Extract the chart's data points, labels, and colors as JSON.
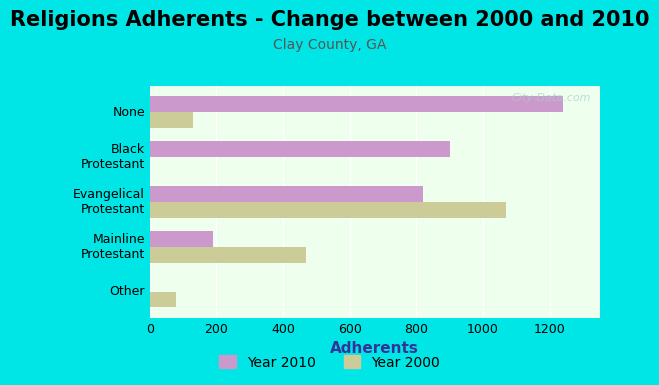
{
  "title": "Religions Adherents - Change between 2000 and 2010",
  "subtitle": "Clay County, GA",
  "xlabel": "Adherents",
  "categories": [
    "Other",
    "Mainline\nProtestant",
    "Evangelical\nProtestant",
    "Black\nProtestant",
    "None"
  ],
  "values_2010": [
    0,
    190,
    820,
    900,
    1240
  ],
  "values_2000": [
    80,
    470,
    1070,
    0,
    130
  ],
  "color_2010": "#cc99cc",
  "color_2000": "#cccc99",
  "background_outer": "#00e5e5",
  "background_plot": "#eeffee",
  "xlim": [
    0,
    1350
  ],
  "xticks": [
    0,
    200,
    400,
    600,
    800,
    1000,
    1200
  ],
  "bar_height": 0.35,
  "title_fontsize": 15,
  "subtitle_fontsize": 10,
  "xlabel_fontsize": 11,
  "legend_labels": [
    "Year 2010",
    "Year 2000"
  ],
  "watermark": "City-Data.com"
}
